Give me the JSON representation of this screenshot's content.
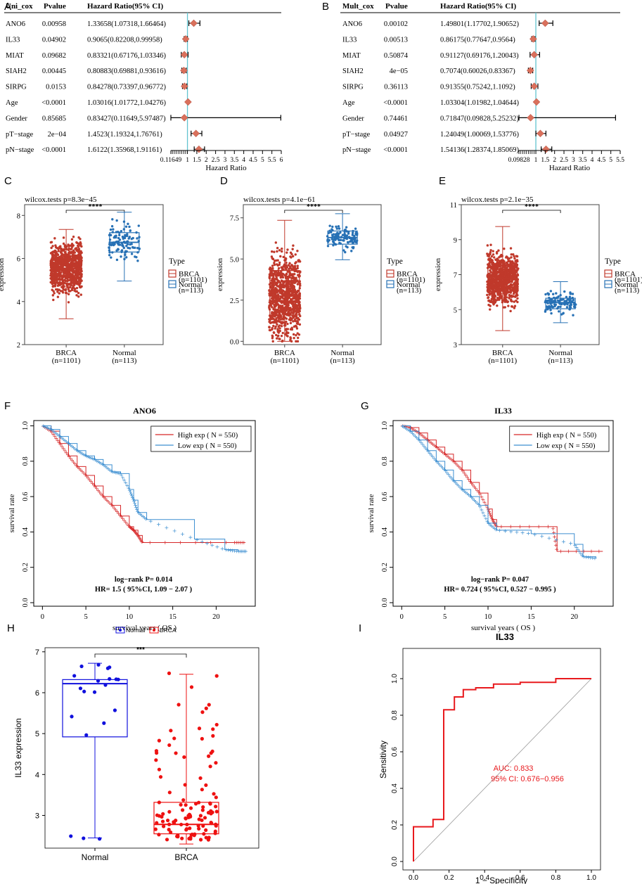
{
  "chart_data": [
    {
      "panel": "A",
      "type": "table",
      "subtype": "forest",
      "headers": [
        "Uni_cox",
        "Pvalue",
        "Hazard Ratio(95% CI)"
      ],
      "rows": [
        {
          "name": "ANO6",
          "p": "0.00958",
          "hr_text": "1.33658(1.07318,1.66464)",
          "hr": 1.33658,
          "lo": 1.07318,
          "hi": 1.66464
        },
        {
          "name": "IL33",
          "p": "0.04902",
          "hr_text": "0.9065(0.82208,0.99958)",
          "hr": 0.9065,
          "lo": 0.82208,
          "hi": 0.99958
        },
        {
          "name": "MIAT",
          "p": "0.09682",
          "hr_text": "0.83321(0.67176,1.03346)",
          "hr": 0.83321,
          "lo": 0.67176,
          "hi": 1.03346
        },
        {
          "name": "SIAH2",
          "p": "0.00445",
          "hr_text": "0.80883(0.69881,0.93616)",
          "hr": 0.80883,
          "lo": 0.69881,
          "hi": 0.93616
        },
        {
          "name": "SIRPG",
          "p": "0.0153",
          "hr_text": "0.84278(0.73397,0.96772)",
          "hr": 0.84278,
          "lo": 0.73397,
          "hi": 0.96772
        },
        {
          "name": "Age",
          "p": "<0.0001",
          "hr_text": "1.03016(1.01772,1.04276)",
          "hr": 1.03016,
          "lo": 1.01772,
          "hi": 1.04276
        },
        {
          "name": "Gender",
          "p": "0.85685",
          "hr_text": "0.83427(0.11649,5.97487)",
          "hr": 0.83427,
          "lo": 0.11649,
          "hi": 5.97487
        },
        {
          "name": "pT−stage",
          "p": "2e−04",
          "hr_text": "1.4523(1.19324,1.76761)",
          "hr": 1.4523,
          "lo": 1.19324,
          "hi": 1.76761
        },
        {
          "name": "pN−stage",
          "p": "<0.0001",
          "hr_text": "1.6122(1.35968,1.91161)",
          "hr": 1.6122,
          "lo": 1.35968,
          "hi": 1.91161
        }
      ],
      "ticks": [
        "0.11649",
        "1",
        "1.5",
        "2",
        "2.5",
        "3",
        "3.5",
        "4",
        "4.5",
        "5",
        "5.5",
        "6"
      ],
      "xlim": [
        0.11649,
        6
      ],
      "xlabel": "Hazard Ratio"
    },
    {
      "panel": "B",
      "type": "table",
      "subtype": "forest",
      "headers": [
        "Mult_cox",
        "Pvalue",
        "Hazard Ratio(95% CI)"
      ],
      "rows": [
        {
          "name": "ANO6",
          "p": "0.00102",
          "hr_text": "1.49801(1.17702,1.90652)",
          "hr": 1.49801,
          "lo": 1.17702,
          "hi": 1.90652
        },
        {
          "name": "IL33",
          "p": "0.00513",
          "hr_text": "0.86175(0.77647,0.9564)",
          "hr": 0.86175,
          "lo": 0.77647,
          "hi": 0.9564
        },
        {
          "name": "MIAT",
          "p": "0.50874",
          "hr_text": "0.91127(0.69176,1.20043)",
          "hr": 0.91127,
          "lo": 0.69176,
          "hi": 1.20043
        },
        {
          "name": "SIAH2",
          "p": "4e−05",
          "hr_text": "0.7074(0.60026,0.83367)",
          "hr": 0.7074,
          "lo": 0.60026,
          "hi": 0.83367
        },
        {
          "name": "SIRPG",
          "p": "0.36113",
          "hr_text": "0.91355(0.75242,1.1092)",
          "hr": 0.91355,
          "lo": 0.75242,
          "hi": 1.1092
        },
        {
          "name": "Age",
          "p": "<0.0001",
          "hr_text": "1.03304(1.01982,1.04644)",
          "hr": 1.03304,
          "lo": 1.01982,
          "hi": 1.04644
        },
        {
          "name": "Gender",
          "p": "0.74461",
          "hr_text": "0.71847(0.09828,5.25232)",
          "hr": 0.71847,
          "lo": 0.09828,
          "hi": 5.25232
        },
        {
          "name": "pT−stage",
          "p": "0.04927",
          "hr_text": "1.24049(1.00069,1.53776)",
          "hr": 1.24049,
          "lo": 1.00069,
          "hi": 1.53776
        },
        {
          "name": "pN−stage",
          "p": "<0.0001",
          "hr_text": "1.54136(1.28374,1.85069)",
          "hr": 1.54136,
          "lo": 1.28374,
          "hi": 1.85069
        }
      ],
      "ticks": [
        "0.09828",
        "1",
        "1.5",
        "2",
        "2.5",
        "3",
        "3.5",
        "4",
        "4.5",
        "5",
        "5.5"
      ],
      "xlim": [
        0.09828,
        5.5
      ],
      "xlabel": "Hazard Ratio"
    },
    {
      "panel": "C",
      "type": "box",
      "title": "wilcox.tests p=8.3e−45",
      "sig": "****",
      "ylabel": "expression",
      "ylim": [
        2,
        8.5
      ],
      "yticks": [
        "2",
        "4",
        "6",
        "8"
      ],
      "groups": [
        {
          "name": "BRCA",
          "n": "(n=1101)",
          "color": "#c0392b",
          "q1": 4.85,
          "median": 5.55,
          "q3": 6.0,
          "wlo": 3.2,
          "whi": 7.35
        },
        {
          "name": "Normal",
          "n": "(n=113)",
          "color": "#2771b5",
          "q1": 6.3,
          "median": 6.75,
          "q3": 7.2,
          "wlo": 4.95,
          "whi": 8.15
        }
      ],
      "legend_title": "Type",
      "legend": [
        "BRCA\n(n=1101)",
        "Normal\n(n=113)"
      ]
    },
    {
      "panel": "D",
      "type": "box",
      "title": "wilcox.tests p=4.1e−61",
      "sig": "****",
      "ylabel": "expression",
      "ylim": [
        -0.2,
        8.3
      ],
      "yticks": [
        "0.0",
        "2.5",
        "5.0",
        "7.5"
      ],
      "groups": [
        {
          "name": "BRCA",
          "n": "(n=1101)",
          "color": "#c0392b",
          "q1": 1.6,
          "median": 2.75,
          "q3": 4.3,
          "wlo": 0.0,
          "whi": 7.35
        },
        {
          "name": "Normal",
          "n": "(n=113)",
          "color": "#2771b5",
          "q1": 5.9,
          "median": 6.3,
          "q3": 6.7,
          "wlo": 4.95,
          "whi": 7.75
        }
      ],
      "legend_title": "Type",
      "legend": [
        "BRCA\n(n=1101)",
        "Normal\n(n=113)"
      ]
    },
    {
      "panel": "E",
      "type": "box",
      "title": "wilcox.tests p=2.1e−35",
      "sig": "****",
      "ylabel": "expression",
      "ylim": [
        3,
        11
      ],
      "yticks": [
        "3",
        "5",
        "7",
        "9",
        "11"
      ],
      "groups": [
        {
          "name": "BRCA",
          "n": "(n=1101)",
          "color": "#c0392b",
          "q1": 6.05,
          "median": 6.75,
          "q3": 7.55,
          "wlo": 3.8,
          "whi": 9.75
        },
        {
          "name": "Normal",
          "n": "(n=113)",
          "color": "#2771b5",
          "q1": 5.05,
          "median": 5.4,
          "q3": 5.65,
          "wlo": 4.25,
          "whi": 6.6
        }
      ],
      "legend_title": "Type",
      "legend": [
        "BRCA\n(n=1101)",
        "Normal\n(n=113)"
      ]
    },
    {
      "panel": "F",
      "type": "line",
      "subtype": "kaplan-meier",
      "title": "ANO6",
      "xlabel": "survival years ( OS )",
      "ylabel": "survival rate",
      "xlim": [
        -1,
        24.5
      ],
      "ylim": [
        -0.02,
        1.03
      ],
      "xticks": [
        0,
        5,
        10,
        15,
        20
      ],
      "yticks": [
        "0.0",
        "0.2",
        "0.4",
        "0.6",
        "0.8",
        "1.0"
      ],
      "legend": [
        "High exp ( N = 550)",
        "Low exp ( N = 550)"
      ],
      "annotation": [
        "log−rank P= 0.014",
        "HR= 1.5 ( 95%CI, 1.09 − 2.07 )"
      ],
      "series": [
        {
          "name": "High exp",
          "color": "#d62728",
          "x": [
            0,
            1,
            2,
            3,
            4,
            5,
            6,
            7,
            8,
            9,
            10,
            10.5,
            11,
            11.5,
            22,
            23.3
          ],
          "y": [
            1.0,
            0.97,
            0.9,
            0.83,
            0.77,
            0.72,
            0.66,
            0.6,
            0.55,
            0.49,
            0.43,
            0.41,
            0.38,
            0.34,
            0.34,
            0.34
          ]
        },
        {
          "name": "Low exp",
          "color": "#3d8fd1",
          "x": [
            0,
            1,
            2,
            3,
            4,
            5,
            6,
            7,
            8,
            9,
            10,
            10.5,
            11,
            12,
            17.5,
            21,
            22.5,
            23.5
          ],
          "y": [
            1.0,
            0.98,
            0.94,
            0.9,
            0.86,
            0.83,
            0.81,
            0.78,
            0.74,
            0.73,
            0.64,
            0.58,
            0.51,
            0.47,
            0.36,
            0.3,
            0.29,
            0.29
          ]
        }
      ]
    },
    {
      "panel": "G",
      "type": "line",
      "subtype": "kaplan-meier",
      "title": "IL33",
      "xlabel": "survival years ( OS )",
      "ylabel": "survival rate",
      "xlim": [
        -1,
        24.5
      ],
      "ylim": [
        -0.02,
        1.03
      ],
      "xticks": [
        0,
        5,
        10,
        15,
        20
      ],
      "yticks": [
        "0.0",
        "0.2",
        "0.4",
        "0.6",
        "0.8",
        "1.0"
      ],
      "legend": [
        "High exp ( N = 550)",
        "Low exp ( N = 550)"
      ],
      "annotation": [
        "log−rank P= 0.047",
        "HR= 0.724 ( 95%CI, 0.527 − 0.995 )"
      ],
      "series": [
        {
          "name": "High exp",
          "color": "#d62728",
          "x": [
            0,
            1,
            2,
            3,
            4,
            5,
            6,
            7,
            8,
            9,
            10,
            10.5,
            11,
            17.5,
            18,
            23.3
          ],
          "y": [
            1.0,
            0.99,
            0.96,
            0.92,
            0.88,
            0.84,
            0.8,
            0.75,
            0.68,
            0.62,
            0.53,
            0.47,
            0.43,
            0.43,
            0.29,
            0.29
          ]
        },
        {
          "name": "Low exp",
          "color": "#3d8fd1",
          "x": [
            0,
            1,
            2,
            3,
            4,
            5,
            6,
            7,
            8,
            9,
            10,
            11,
            15,
            20,
            21,
            22.5
          ],
          "y": [
            1.0,
            0.97,
            0.92,
            0.86,
            0.8,
            0.75,
            0.69,
            0.64,
            0.6,
            0.55,
            0.45,
            0.41,
            0.39,
            0.33,
            0.26,
            0.25
          ]
        }
      ]
    },
    {
      "panel": "H",
      "type": "box",
      "title": "",
      "sig": "***",
      "ylabel": "IL33 expression",
      "ylim": [
        2.2,
        7.1
      ],
      "yticks": [
        "3",
        "4",
        "5",
        "6",
        "7"
      ],
      "groups": [
        {
          "name": "Normal",
          "n": "",
          "color": "#1010dd",
          "q1": 4.92,
          "median": 6.22,
          "q3": 6.32,
          "wlo": 2.45,
          "whi": 6.72
        },
        {
          "name": "BRCA",
          "n": "",
          "color": "#ee1111",
          "q1": 2.55,
          "median": 2.78,
          "q3": 3.32,
          "wlo": 2.3,
          "whi": 6.45
        }
      ],
      "legend": [
        "Normal",
        "BRCA"
      ]
    },
    {
      "panel": "I",
      "type": "line",
      "subtype": "roc",
      "title": "IL33",
      "xlabel": "1 − Specificity",
      "ylabel": "Sensitivity",
      "xlim": [
        0,
        1
      ],
      "ylim": [
        0,
        1
      ],
      "ticks": [
        "0.0",
        "0.2",
        "0.4",
        "0.6",
        "0.8",
        "1.0"
      ],
      "auc": "AUC: 0.833",
      "ci": "95% CI: 0.676−0.956",
      "series": [
        {
          "name": "ROC",
          "color": "#e8191d",
          "x": [
            0,
            0,
            0.11,
            0.11,
            0.17,
            0.17,
            0.23,
            0.23,
            0.28,
            0.28,
            0.35,
            0.35,
            0.45,
            0.45,
            0.6,
            0.6,
            0.8,
            0.8,
            1.0
          ],
          "y": [
            0,
            0.19,
            0.19,
            0.23,
            0.23,
            0.83,
            0.83,
            0.9,
            0.9,
            0.94,
            0.94,
            0.95,
            0.95,
            0.97,
            0.97,
            0.98,
            0.98,
            1.0,
            1.0
          ]
        }
      ]
    }
  ]
}
